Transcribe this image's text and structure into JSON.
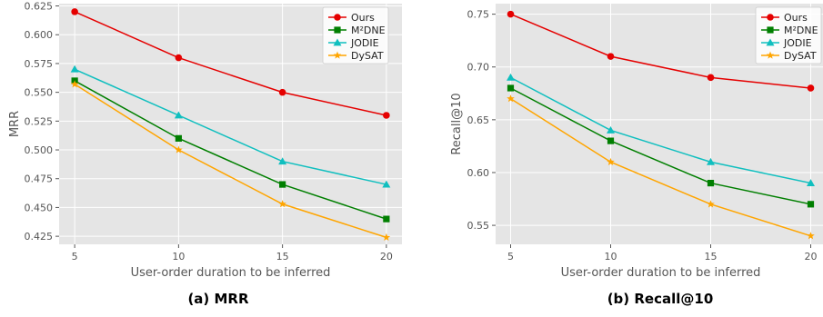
{
  "chart_data": [
    {
      "type": "line",
      "caption": "(a) MRR",
      "xlabel": "User-order duration to be inferred",
      "ylabel": "MRR",
      "x": [
        5,
        10,
        15,
        20
      ],
      "xticks": [
        "5",
        "10",
        "15",
        "20"
      ],
      "ylim": [
        0.418,
        0.627
      ],
      "yticks": [
        "0.425",
        "0.450",
        "0.475",
        "0.500",
        "0.525",
        "0.550",
        "0.575",
        "0.600",
        "0.625"
      ],
      "grid": true,
      "legend_position": "top-right",
      "series": [
        {
          "name": "Ours",
          "color": "#e50000",
          "marker": "circle",
          "values": [
            0.62,
            0.58,
            0.55,
            0.53
          ]
        },
        {
          "name": "M²DNE",
          "color": "#007f00",
          "marker": "square",
          "values": [
            0.56,
            0.51,
            0.47,
            0.44
          ]
        },
        {
          "name": "JODIE",
          "color": "#10bfbf",
          "marker": "triangle",
          "values": [
            0.57,
            0.53,
            0.49,
            0.47
          ]
        },
        {
          "name": "DySAT",
          "color": "#ffa500",
          "marker": "star",
          "values": [
            0.557,
            0.5,
            0.453,
            0.424
          ]
        }
      ]
    },
    {
      "type": "line",
      "caption": "(b) Recall@10",
      "xlabel": "User-order duration to be inferred",
      "ylabel": "Recall@10",
      "x": [
        5,
        10,
        15,
        20
      ],
      "xticks": [
        "5",
        "10",
        "15",
        "20"
      ],
      "ylim": [
        0.532,
        0.76
      ],
      "yticks": [
        "0.55",
        "0.60",
        "0.65",
        "0.70",
        "0.75"
      ],
      "grid": true,
      "legend_position": "top-right",
      "series": [
        {
          "name": "Ours",
          "color": "#e50000",
          "marker": "circle",
          "values": [
            0.75,
            0.71,
            0.69,
            0.68
          ]
        },
        {
          "name": "M²DNE",
          "color": "#007f00",
          "marker": "square",
          "values": [
            0.68,
            0.63,
            0.59,
            0.57
          ]
        },
        {
          "name": "JODIE",
          "color": "#10bfbf",
          "marker": "triangle",
          "values": [
            0.69,
            0.64,
            0.61,
            0.59
          ]
        },
        {
          "name": "DySAT",
          "color": "#ffa500",
          "marker": "star",
          "values": [
            0.67,
            0.61,
            0.57,
            0.54
          ]
        }
      ]
    }
  ]
}
